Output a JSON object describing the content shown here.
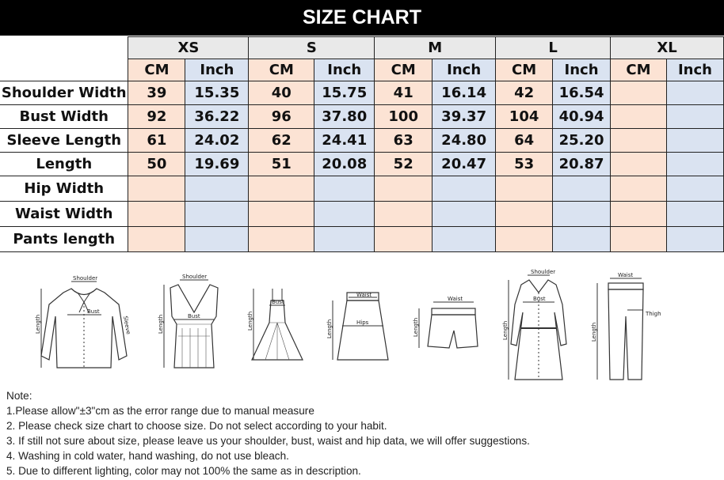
{
  "title": "SIZE CHART",
  "sizes": [
    "XS",
    "S",
    "M",
    "L",
    "XL"
  ],
  "units": {
    "cm": "CM",
    "inch": "Inch"
  },
  "rows": [
    {
      "label": "Shoulder Width",
      "values": [
        "39",
        "15.35",
        "40",
        "15.75",
        "41",
        "16.14",
        "42",
        "16.54",
        "",
        ""
      ]
    },
    {
      "label": "Bust Width",
      "values": [
        "92",
        "36.22",
        "96",
        "37.80",
        "100",
        "39.37",
        "104",
        "40.94",
        "",
        ""
      ]
    },
    {
      "label": "Sleeve Length",
      "values": [
        "61",
        "24.02",
        "62",
        "24.41",
        "63",
        "24.80",
        "64",
        "25.20",
        "",
        ""
      ]
    },
    {
      "label": "Length",
      "values": [
        "50",
        "19.69",
        "51",
        "20.08",
        "52",
        "20.47",
        "53",
        "20.87",
        "",
        ""
      ]
    },
    {
      "label": "Hip Width",
      "values": [
        "",
        "",
        "",
        "",
        "",
        "",
        "",
        "",
        "",
        ""
      ]
    },
    {
      "label": "Waist Width",
      "values": [
        "",
        "",
        "",
        "",
        "",
        "",
        "",
        "",
        "",
        ""
      ]
    },
    {
      "label": "Pants length",
      "values": [
        "",
        "",
        "",
        "",
        "",
        "",
        "",
        "",
        "",
        ""
      ]
    }
  ],
  "colors": {
    "header_bg": "#000000",
    "size_header": "#e9e9e9",
    "cm_cell": "#fce3d4",
    "inch_cell": "#dae3f1"
  },
  "diagrams": {
    "shirt": {
      "shoulder": "Shoulder",
      "bust": "Bust",
      "length": "Length",
      "sleeve": "Sleeve"
    },
    "tank": {
      "shoulder": "Shoulder",
      "bust": "Bust",
      "length": "Length"
    },
    "dress": {
      "bust": "Bust",
      "length": "Length"
    },
    "skirt": {
      "waist": "Waist",
      "hips": "Hips",
      "length": "Length"
    },
    "shorts": {
      "waist": "Waist",
      "length": "Length"
    },
    "coat": {
      "shoulder": "Shoulder",
      "bust": "Bust",
      "length": "Length"
    },
    "pants": {
      "waist": "Waist",
      "thigh": "Thigh",
      "length": "Length"
    }
  },
  "notes": {
    "heading": "Note:",
    "items": [
      "1.Please allow\"±3\"cm as the error range due to manual measure",
      "2. Please check size chart to choose size. Do not select according to your habit.",
      "3. If still not sure about size, please leave us your shoulder, bust, waist and hip data, we will offer suggestions.",
      "4. Washing in cold water, hand washing, do not use bleach.",
      "5. Due to different lighting, color may not 100% the same as in description."
    ]
  }
}
